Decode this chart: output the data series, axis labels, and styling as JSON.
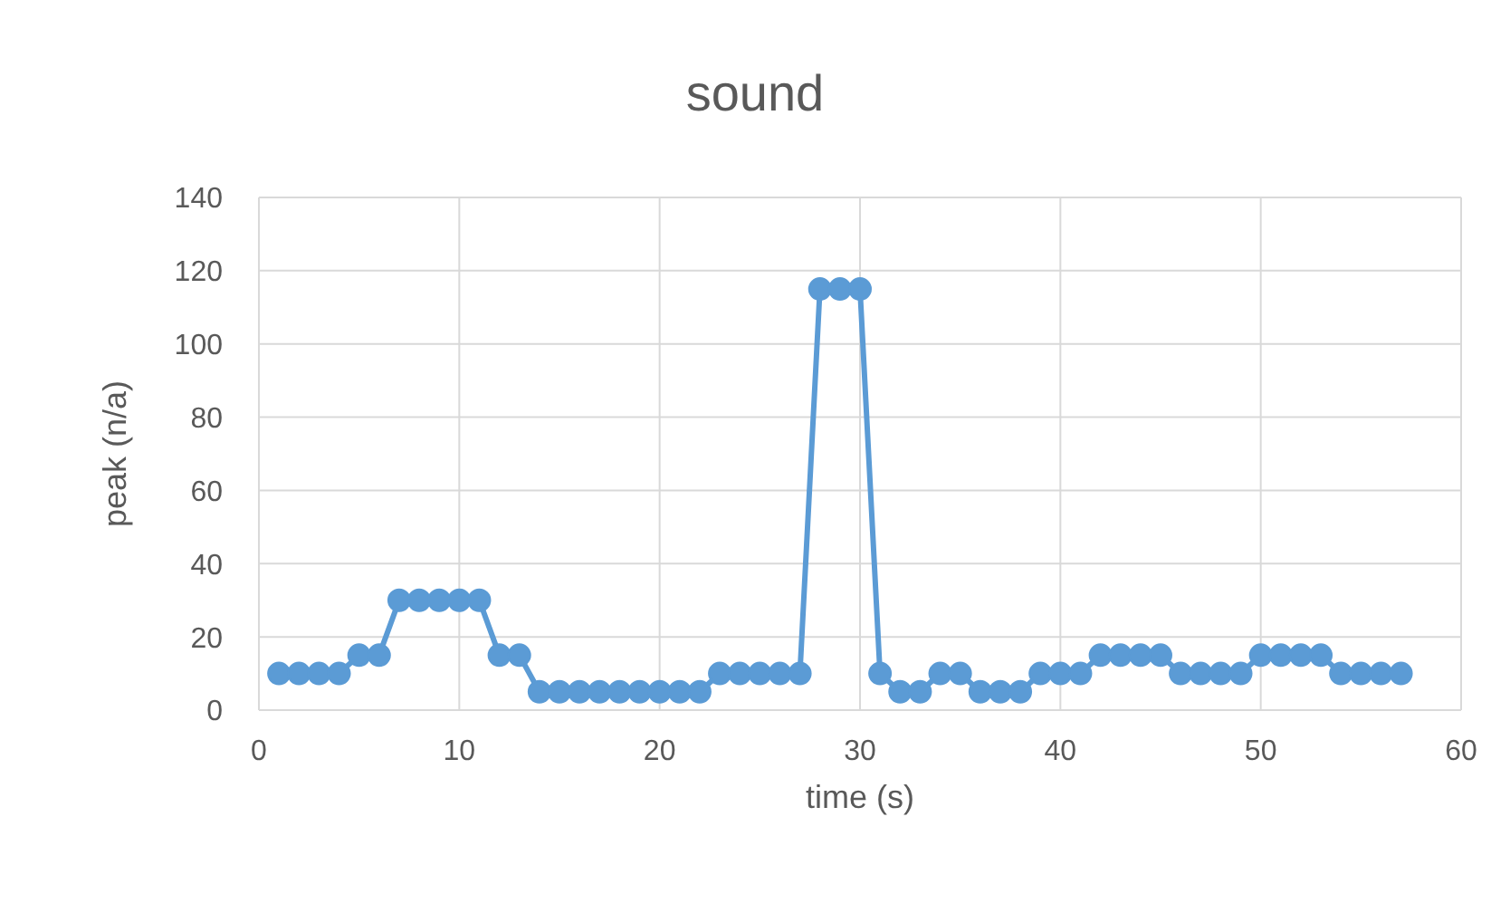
{
  "chart_data": {
    "type": "line",
    "title": "sound",
    "xlabel": "time (s)",
    "ylabel": "peak (n/a)",
    "x": [
      1,
      2,
      3,
      4,
      5,
      6,
      7,
      8,
      9,
      10,
      11,
      12,
      13,
      14,
      15,
      16,
      17,
      18,
      19,
      20,
      21,
      22,
      23,
      24,
      25,
      26,
      27,
      28,
      29,
      30,
      31,
      32,
      33,
      34,
      35,
      36,
      37,
      38,
      39,
      40,
      41,
      42,
      43,
      44,
      45,
      46,
      47,
      48,
      49,
      50,
      51,
      52,
      53,
      54,
      55,
      56,
      57
    ],
    "series": [
      {
        "color": "#5b9bd5",
        "values": [
          10,
          10,
          10,
          10,
          15,
          15,
          30,
          30,
          30,
          30,
          30,
          15,
          15,
          5,
          5,
          5,
          5,
          5,
          5,
          5,
          5,
          5,
          10,
          10,
          10,
          10,
          10,
          115,
          115,
          115,
          10,
          5,
          5,
          10,
          10,
          5,
          5,
          5,
          10,
          10,
          10,
          15,
          15,
          15,
          15,
          10,
          10,
          10,
          10,
          15,
          15,
          15,
          15,
          10,
          10,
          10,
          10
        ]
      }
    ],
    "xlim": [
      0,
      60
    ],
    "xticks": [
      0,
      10,
      20,
      30,
      40,
      50,
      60
    ],
    "ylim": [
      0,
      140
    ],
    "yticks": [
      0,
      20,
      40,
      60,
      80,
      100,
      120,
      140
    ],
    "grid": true,
    "marker": "circle",
    "line_style": "solid"
  }
}
